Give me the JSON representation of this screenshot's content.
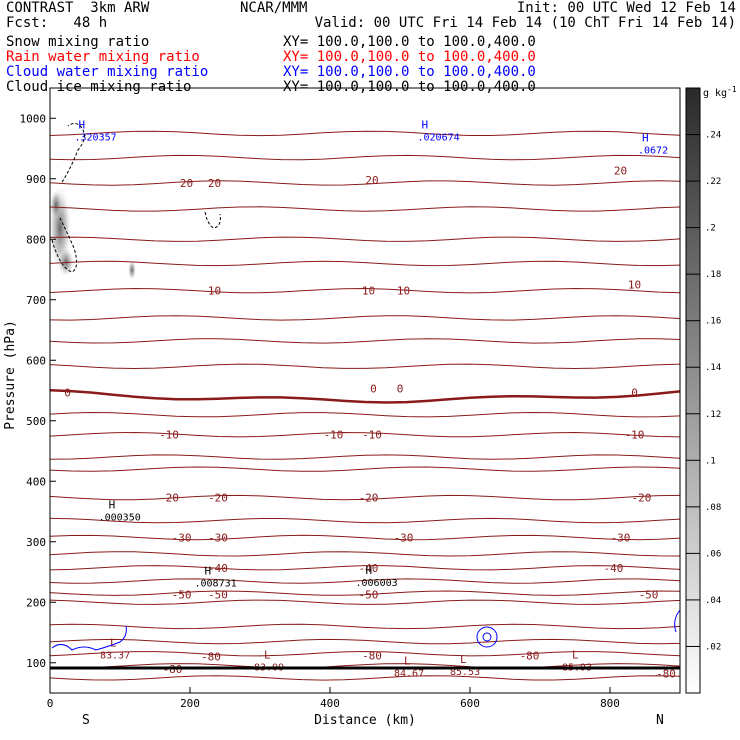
{
  "header": {
    "left_title": "CONTRAST  3km ARW",
    "center_title": "NCAR/MMM",
    "init": "Init: 00 UTC Wed 12 Feb 14",
    "fcst": "Fcst:   48 h",
    "valid": "Valid: 00 UTC Fri 14 Feb 14 (10 ChT Fri 14 Feb 14)"
  },
  "legend": [
    {
      "field": "Snow mixing ratio",
      "xy": "XY= 100.0,100.0 to 100.0,400.0",
      "color": "#000000"
    },
    {
      "field": "Rain water mixing ratio",
      "xy": "XY= 100.0,100.0 to 100.0,400.0",
      "color": "#ff0000"
    },
    {
      "field": "Cloud water mixing ratio",
      "xy": "XY= 100.0,100.0 to 100.0,400.0",
      "color": "#0000ff"
    },
    {
      "field": "Cloud ice mixing ratio",
      "xy": "XY= 100.0,100.0 to 100.0,400.0",
      "color": "#000000"
    }
  ],
  "chart_data": {
    "type": "contour",
    "xlabel": "Distance (km)",
    "ylabel": "Pressure (hPa)",
    "xlim": [
      0,
      900
    ],
    "ylim": [
      1050,
      50
    ],
    "x_ticks": [
      0,
      200,
      400,
      600,
      800
    ],
    "y_ticks": [
      100,
      200,
      300,
      400,
      500,
      600,
      700,
      800,
      900,
      1000
    ],
    "endpoints": {
      "left": "S",
      "right": "N"
    },
    "temperature_isotherms": [
      {
        "value": -80,
        "labels": [
          {
            "text": "-80",
            "x": 175,
            "p": 90
          },
          {
            "text": "-80",
            "x": 230,
            "p": 110
          },
          {
            "text": "-80",
            "x": 460,
            "p": 112
          },
          {
            "text": "-80",
            "x": 685,
            "p": 112
          },
          {
            "text": "-80",
            "x": 880,
            "p": 82
          }
        ]
      },
      {
        "value": -50,
        "labels": [
          {
            "text": "-50",
            "x": 188,
            "p": 213
          },
          {
            "text": "-50",
            "x": 240,
            "p": 213
          },
          {
            "text": "-50",
            "x": 455,
            "p": 213
          },
          {
            "text": "-50",
            "x": 855,
            "p": 213
          }
        ]
      },
      {
        "value": -40,
        "labels": [
          {
            "text": "-40",
            "x": 240,
            "p": 257
          },
          {
            "text": "-40",
            "x": 455,
            "p": 257
          },
          {
            "text": "-40",
            "x": 805,
            "p": 257
          }
        ]
      },
      {
        "value": -30,
        "labels": [
          {
            "text": "-30",
            "x": 188,
            "p": 307
          },
          {
            "text": "-30",
            "x": 240,
            "p": 307
          },
          {
            "text": "-30",
            "x": 505,
            "p": 307
          },
          {
            "text": "-30",
            "x": 815,
            "p": 307
          }
        ]
      },
      {
        "value": -20,
        "labels": [
          {
            "text": "-20",
            "x": 170,
            "p": 373
          },
          {
            "text": "-20",
            "x": 240,
            "p": 373
          },
          {
            "text": "-20",
            "x": 455,
            "p": 373
          },
          {
            "text": "-20",
            "x": 845,
            "p": 373
          }
        ]
      },
      {
        "value": -10,
        "labels": [
          {
            "text": "-10",
            "x": 170,
            "p": 477
          },
          {
            "text": "-10",
            "x": 405,
            "p": 477
          },
          {
            "text": "-10",
            "x": 460,
            "p": 477
          },
          {
            "text": "-10",
            "x": 835,
            "p": 477
          }
        ]
      },
      {
        "value": 0,
        "labels": [
          {
            "text": "0",
            "x": 25,
            "p": 547
          },
          {
            "text": "0",
            "x": 462,
            "p": 553
          },
          {
            "text": "0",
            "x": 500,
            "p": 553
          },
          {
            "text": "0",
            "x": 835,
            "p": 547
          }
        ]
      },
      {
        "value": 10,
        "labels": [
          {
            "text": "10",
            "x": 235,
            "p": 715
          },
          {
            "text": "10",
            "x": 455,
            "p": 715
          },
          {
            "text": "10",
            "x": 505,
            "p": 715
          },
          {
            "text": "10",
            "x": 835,
            "p": 725
          }
        ]
      },
      {
        "value": 20,
        "labels": [
          {
            "text": "20",
            "x": 195,
            "p": 893
          },
          {
            "text": "20",
            "x": 235,
            "p": 893
          },
          {
            "text": "20",
            "x": 460,
            "p": 898
          },
          {
            "text": "20",
            "x": 815,
            "p": 914
          }
        ]
      }
    ],
    "extrema": [
      {
        "type": "L",
        "value": "83.37",
        "x": 100,
        "p": 117
      },
      {
        "type": "L",
        "value": "83.09",
        "x": 320,
        "p": 97
      },
      {
        "type": "L",
        "value": "84.67",
        "x": 520,
        "p": 87
      },
      {
        "type": "L",
        "value": "85.53",
        "x": 600,
        "p": 90
      },
      {
        "type": "L",
        "value": "85.93",
        "x": 760,
        "p": 97
      },
      {
        "type": "H",
        "value": ".008731",
        "x": 235,
        "p": 236
      },
      {
        "type": "H",
        "value": ".006003",
        "x": 465,
        "p": 237
      },
      {
        "type": "H",
        "value": ".000350",
        "x": 98,
        "p": 345
      }
    ],
    "cloud_water_extrema": [
      {
        "type": "H",
        "value": ".320357",
        "x": 55,
        "p": 970
      },
      {
        "type": "H",
        "value": ".020674",
        "x": 545,
        "p": 970
      },
      {
        "type": "H",
        "value": ".0672",
        "x": 860,
        "p": 948
      }
    ],
    "colorbar": {
      "unit": "g kg",
      "unit_exp": "-1",
      "ticks": [
        ".02",
        ".04",
        ".06",
        ".08",
        ".1",
        ".12",
        ".14",
        ".16",
        ".18",
        ".2",
        ".22",
        ".24"
      ],
      "min": 0,
      "max": 0.26
    }
  }
}
